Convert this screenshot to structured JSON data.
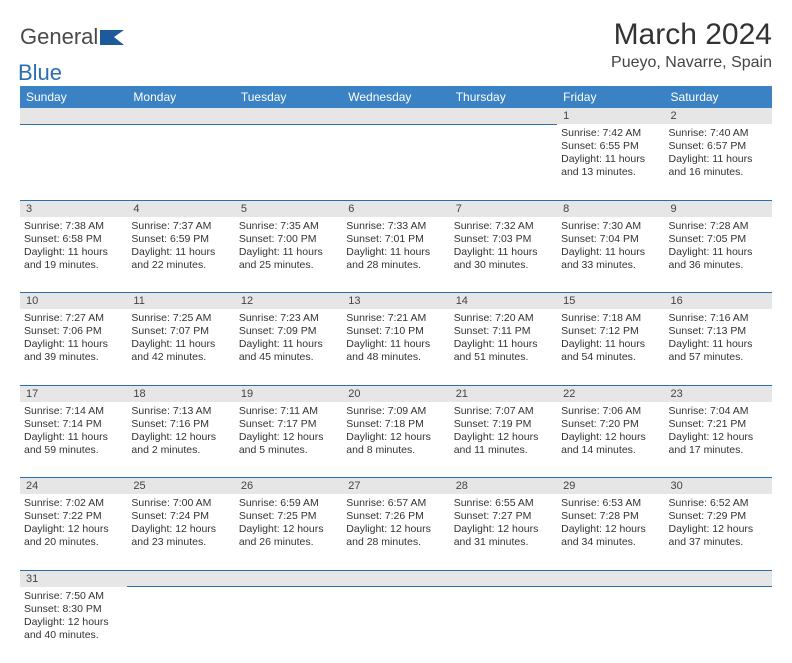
{
  "logo": {
    "part1": "General",
    "part2": "Blue",
    "flag_color": "#1d5a99"
  },
  "title": "March 2024",
  "location": "Pueyo, Navarre, Spain",
  "colors": {
    "header_bg": "#3b82c4",
    "row_border": "#2b6fb0",
    "daynum_bg": "#e6e6e6"
  },
  "day_headers": [
    "Sunday",
    "Monday",
    "Tuesday",
    "Wednesday",
    "Thursday",
    "Friday",
    "Saturday"
  ],
  "weeks": [
    [
      null,
      null,
      null,
      null,
      null,
      {
        "n": "1",
        "sr": "7:42 AM",
        "ss": "6:55 PM",
        "dl": "11 hours and 13 minutes."
      },
      {
        "n": "2",
        "sr": "7:40 AM",
        "ss": "6:57 PM",
        "dl": "11 hours and 16 minutes."
      }
    ],
    [
      {
        "n": "3",
        "sr": "7:38 AM",
        "ss": "6:58 PM",
        "dl": "11 hours and 19 minutes."
      },
      {
        "n": "4",
        "sr": "7:37 AM",
        "ss": "6:59 PM",
        "dl": "11 hours and 22 minutes."
      },
      {
        "n": "5",
        "sr": "7:35 AM",
        "ss": "7:00 PM",
        "dl": "11 hours and 25 minutes."
      },
      {
        "n": "6",
        "sr": "7:33 AM",
        "ss": "7:01 PM",
        "dl": "11 hours and 28 minutes."
      },
      {
        "n": "7",
        "sr": "7:32 AM",
        "ss": "7:03 PM",
        "dl": "11 hours and 30 minutes."
      },
      {
        "n": "8",
        "sr": "7:30 AM",
        "ss": "7:04 PM",
        "dl": "11 hours and 33 minutes."
      },
      {
        "n": "9",
        "sr": "7:28 AM",
        "ss": "7:05 PM",
        "dl": "11 hours and 36 minutes."
      }
    ],
    [
      {
        "n": "10",
        "sr": "7:27 AM",
        "ss": "7:06 PM",
        "dl": "11 hours and 39 minutes."
      },
      {
        "n": "11",
        "sr": "7:25 AM",
        "ss": "7:07 PM",
        "dl": "11 hours and 42 minutes."
      },
      {
        "n": "12",
        "sr": "7:23 AM",
        "ss": "7:09 PM",
        "dl": "11 hours and 45 minutes."
      },
      {
        "n": "13",
        "sr": "7:21 AM",
        "ss": "7:10 PM",
        "dl": "11 hours and 48 minutes."
      },
      {
        "n": "14",
        "sr": "7:20 AM",
        "ss": "7:11 PM",
        "dl": "11 hours and 51 minutes."
      },
      {
        "n": "15",
        "sr": "7:18 AM",
        "ss": "7:12 PM",
        "dl": "11 hours and 54 minutes."
      },
      {
        "n": "16",
        "sr": "7:16 AM",
        "ss": "7:13 PM",
        "dl": "11 hours and 57 minutes."
      }
    ],
    [
      {
        "n": "17",
        "sr": "7:14 AM",
        "ss": "7:14 PM",
        "dl": "11 hours and 59 minutes."
      },
      {
        "n": "18",
        "sr": "7:13 AM",
        "ss": "7:16 PM",
        "dl": "12 hours and 2 minutes."
      },
      {
        "n": "19",
        "sr": "7:11 AM",
        "ss": "7:17 PM",
        "dl": "12 hours and 5 minutes."
      },
      {
        "n": "20",
        "sr": "7:09 AM",
        "ss": "7:18 PM",
        "dl": "12 hours and 8 minutes."
      },
      {
        "n": "21",
        "sr": "7:07 AM",
        "ss": "7:19 PM",
        "dl": "12 hours and 11 minutes."
      },
      {
        "n": "22",
        "sr": "7:06 AM",
        "ss": "7:20 PM",
        "dl": "12 hours and 14 minutes."
      },
      {
        "n": "23",
        "sr": "7:04 AM",
        "ss": "7:21 PM",
        "dl": "12 hours and 17 minutes."
      }
    ],
    [
      {
        "n": "24",
        "sr": "7:02 AM",
        "ss": "7:22 PM",
        "dl": "12 hours and 20 minutes."
      },
      {
        "n": "25",
        "sr": "7:00 AM",
        "ss": "7:24 PM",
        "dl": "12 hours and 23 minutes."
      },
      {
        "n": "26",
        "sr": "6:59 AM",
        "ss": "7:25 PM",
        "dl": "12 hours and 26 minutes."
      },
      {
        "n": "27",
        "sr": "6:57 AM",
        "ss": "7:26 PM",
        "dl": "12 hours and 28 minutes."
      },
      {
        "n": "28",
        "sr": "6:55 AM",
        "ss": "7:27 PM",
        "dl": "12 hours and 31 minutes."
      },
      {
        "n": "29",
        "sr": "6:53 AM",
        "ss": "7:28 PM",
        "dl": "12 hours and 34 minutes."
      },
      {
        "n": "30",
        "sr": "6:52 AM",
        "ss": "7:29 PM",
        "dl": "12 hours and 37 minutes."
      }
    ],
    [
      {
        "n": "31",
        "sr": "7:50 AM",
        "ss": "8:30 PM",
        "dl": "12 hours and 40 minutes."
      },
      null,
      null,
      null,
      null,
      null,
      null
    ]
  ],
  "labels": {
    "sunrise": "Sunrise:",
    "sunset": "Sunset:",
    "daylight": "Daylight:"
  }
}
